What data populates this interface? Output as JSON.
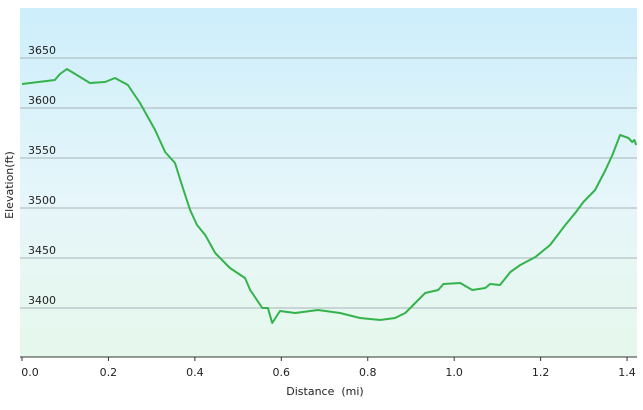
{
  "chart_data": {
    "type": "line",
    "x_label": "Distance  (mi)",
    "y_label": "Elevation(ft)",
    "series": [
      {
        "color": "#34b34a",
        "x": [
          0,
          0.076,
          0.088,
          0.104,
          0.123,
          0.157,
          0.192,
          0.215,
          0.245,
          0.273,
          0.308,
          0.331,
          0.354,
          0.37,
          0.389,
          0.405,
          0.424,
          0.447,
          0.481,
          0.516,
          0.528,
          0.556,
          0.569,
          0.579,
          0.597,
          0.632,
          0.685,
          0.736,
          0.782,
          0.829,
          0.863,
          0.887,
          0.933,
          0.963,
          0.975,
          1.014,
          1.042,
          1.072,
          1.083,
          1.106,
          1.13,
          1.153,
          1.188,
          1.222,
          1.257,
          1.28,
          1.299,
          1.326,
          1.35,
          1.366,
          1.384,
          1.403,
          1.412,
          1.417,
          1.421
        ],
        "values": [
          3624,
          3628,
          3634,
          3639,
          3634,
          3625,
          3626,
          3630,
          3623,
          3605,
          3578,
          3556,
          3545,
          3523,
          3498,
          3483,
          3473,
          3455,
          3440,
          3430,
          3418,
          3400,
          3400,
          3385,
          3397,
          3395,
          3398,
          3395,
          3390,
          3388,
          3390,
          3395,
          3415,
          3418,
          3424,
          3425,
          3418,
          3420,
          3424,
          3423,
          3436,
          3443,
          3451,
          3463,
          3483,
          3495,
          3506,
          3518,
          3538,
          3553,
          3573,
          3570,
          3566,
          3568,
          3563
        ]
      }
    ],
    "xlim": [
      0,
      1.423
    ],
    "xticks": [
      {
        "value": 0,
        "label": "0.0"
      },
      0.2,
      0.4,
      0.6,
      0.8,
      {
        "value": 1,
        "label": "1.0"
      },
      1.2,
      1.4
    ],
    "ylim": [
      3351,
      3700
    ],
    "yticks": [
      3400,
      3450,
      3500,
      3550,
      3600,
      3650
    ],
    "grid": true
  }
}
